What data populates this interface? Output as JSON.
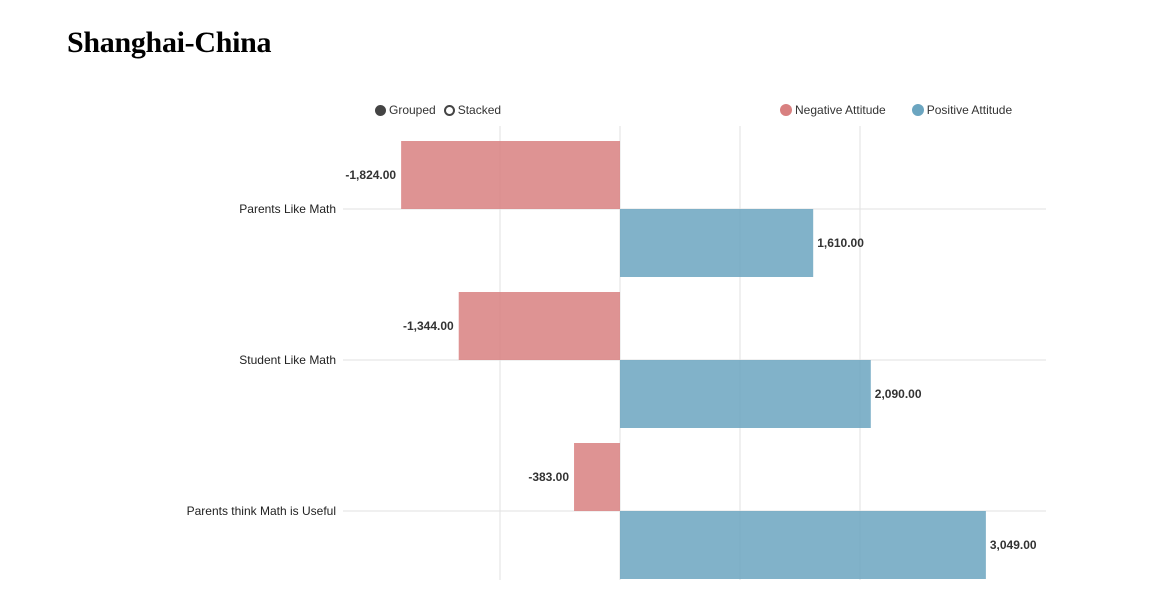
{
  "title": "Shanghai-China",
  "controls": {
    "grouped_label": "Grouped",
    "stacked_label": "Stacked",
    "selected": "grouped"
  },
  "colors": {
    "negative": "#d88080",
    "positive": "#6ba5c0",
    "control": "#444444",
    "grid": "#e2e2e2"
  },
  "chart_data": {
    "type": "bar",
    "orientation": "horizontal",
    "mode": "grouped",
    "title": "Shanghai-China",
    "categories": [
      "Parents Like Math",
      "Student Like Math",
      "Parents think Math is Useful"
    ],
    "series": [
      {
        "name": "Negative Attitude",
        "values": [
          -1824,
          -1344,
          -383
        ],
        "labels": [
          "-1,824.00",
          "-1,344.00",
          "-383.00"
        ]
      },
      {
        "name": "Positive Attitude",
        "values": [
          1610,
          2090,
          3049
        ],
        "labels": [
          "1,610.00",
          "2,090.00",
          "3,049.00"
        ]
      }
    ],
    "xlim": [
      -2500,
      3500
    ],
    "x_gridlines": [
      -1000,
      0,
      1000,
      2000
    ],
    "grid": true,
    "legend_position": "top-right"
  }
}
